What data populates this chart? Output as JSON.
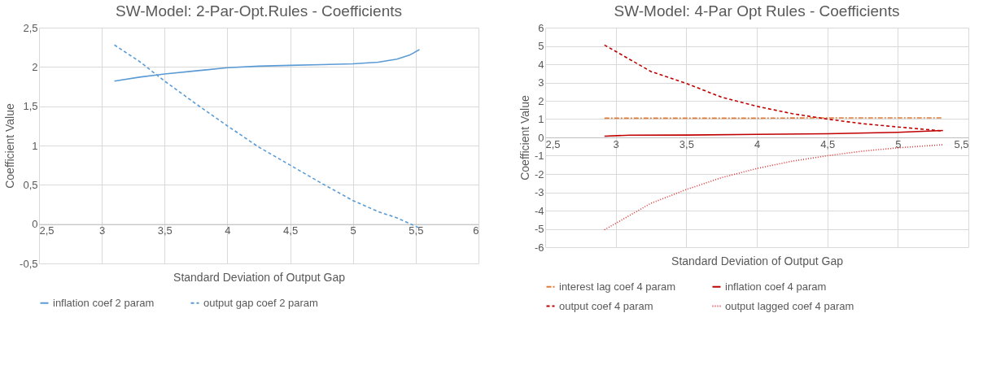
{
  "chart_data": [
    {
      "type": "line",
      "title": "SW-Model: 2-Par-Opt.Rules - Coefficients",
      "xlabel": "Standard Deviation of Output Gap",
      "ylabel": "Coefficient Value",
      "xlim": [
        2.5,
        6
      ],
      "xticks": [
        {
          "value": 2.5,
          "label": "2,5"
        },
        3,
        {
          "value": 3.5,
          "label": "3,5"
        },
        4,
        {
          "value": 4.5,
          "label": "4,5"
        },
        5,
        {
          "value": 5.5,
          "label": "5,5"
        },
        6
      ],
      "ylim": [
        -0.5,
        2.5
      ],
      "yticks": [
        {
          "value": -0.5,
          "label": "-0,5"
        },
        0,
        {
          "value": 0.5,
          "label": "0,5"
        },
        1,
        {
          "value": 1.5,
          "label": "1,5"
        },
        2,
        {
          "value": 2.5,
          "label": "2,5"
        }
      ],
      "grid": true,
      "legend": "bottom",
      "series": [
        {
          "name": "inflation coef 2 param",
          "color": "#5b9bd5",
          "line_style": "solid",
          "x": [
            3.1,
            3.3,
            3.5,
            3.75,
            4,
            4.25,
            4.5,
            4.75,
            5,
            5.2,
            5.35,
            5.45,
            5.53
          ],
          "values": [
            1.82,
            1.87,
            1.91,
            1.95,
            1.99,
            2.01,
            2.02,
            2.03,
            2.04,
            2.06,
            2.1,
            2.15,
            2.22
          ]
        },
        {
          "name": "output gap coef 2 param",
          "color": "#5b9bd5",
          "line_style": "dashed",
          "x": [
            3.1,
            3.3,
            3.5,
            3.75,
            4,
            4.25,
            4.5,
            4.75,
            5,
            5.2,
            5.35,
            5.53
          ],
          "values": [
            2.28,
            2.07,
            1.82,
            1.53,
            1.25,
            0.98,
            0.75,
            0.52,
            0.3,
            0.16,
            0.08,
            -0.05
          ]
        }
      ]
    },
    {
      "type": "line",
      "title": "SW-Model: 4-Par Opt Rules - Coefficients",
      "xlabel": "Standard Deviation of Output Gap",
      "ylabel": "Coefficient Value",
      "xlim": [
        2.5,
        5.5
      ],
      "xticks": [
        {
          "value": 2.5,
          "label": "2,5"
        },
        3,
        {
          "value": 3.5,
          "label": "3,5"
        },
        4,
        {
          "value": 4.5,
          "label": "4,5"
        },
        5,
        {
          "value": 5.5,
          "label": "5,5"
        }
      ],
      "ylim": [
        -6,
        6
      ],
      "yticks": [
        -6,
        -5,
        -4,
        -3,
        -2,
        -1,
        0,
        1,
        2,
        3,
        4,
        5,
        6
      ],
      "grid": true,
      "legend": "bottom",
      "series": [
        {
          "name": "interest lag coef 4 param",
          "color": "#e07b39",
          "line_style": "dashdot",
          "x": [
            2.92,
            3.5,
            4,
            4.5,
            5,
            5.32
          ],
          "values": [
            1.05,
            1.05,
            1.05,
            1.07,
            1.07,
            1.07
          ]
        },
        {
          "name": "inflation coef 4 param",
          "color": "#c00000",
          "line_style": "solid",
          "x": [
            2.92,
            3.1,
            3.5,
            4,
            4.5,
            5,
            5.32
          ],
          "values": [
            0.07,
            0.12,
            0.13,
            0.17,
            0.2,
            0.28,
            0.38
          ]
        },
        {
          "name": "output coef 4 param",
          "color": "#c00000",
          "line_style": "dashed",
          "x": [
            2.92,
            3,
            3.25,
            3.5,
            3.75,
            4,
            4.25,
            4.5,
            4.75,
            5,
            5.32
          ],
          "values": [
            5.05,
            4.7,
            3.6,
            2.95,
            2.2,
            1.7,
            1.3,
            1.0,
            0.75,
            0.57,
            0.35
          ]
        },
        {
          "name": "output lagged coef 4 param",
          "color": "#e03030",
          "line_style": "dotted",
          "x": [
            2.92,
            3.25,
            3.5,
            3.75,
            4,
            4.25,
            4.5,
            4.75,
            5,
            5.32
          ],
          "values": [
            -5.05,
            -3.6,
            -2.85,
            -2.2,
            -1.7,
            -1.3,
            -1.0,
            -0.75,
            -0.57,
            -0.4
          ]
        }
      ]
    }
  ]
}
